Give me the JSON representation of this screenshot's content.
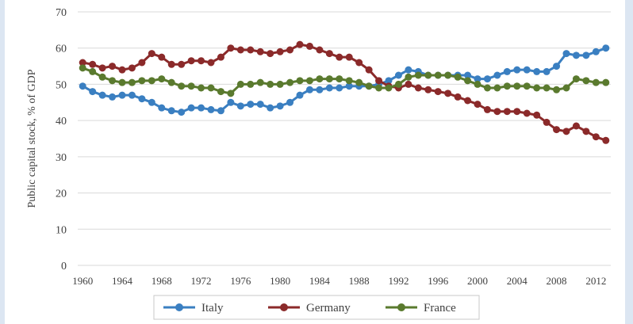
{
  "chart_data": {
    "type": "line",
    "ylabel": "Public capital stock, % of GDP",
    "ylim": [
      0,
      70
    ],
    "yticks": [
      0,
      10,
      20,
      30,
      40,
      50,
      60,
      70
    ],
    "xlim": [
      1960,
      2013
    ],
    "xticks": [
      1960,
      1964,
      1968,
      1972,
      1976,
      1980,
      1984,
      1988,
      1992,
      1996,
      2000,
      2004,
      2008,
      2012
    ],
    "grid": true,
    "legend_position": "bottom",
    "x": [
      1960,
      1961,
      1962,
      1963,
      1964,
      1965,
      1966,
      1967,
      1968,
      1969,
      1970,
      1971,
      1972,
      1973,
      1974,
      1975,
      1976,
      1977,
      1978,
      1979,
      1980,
      1981,
      1982,
      1983,
      1984,
      1985,
      1986,
      1987,
      1988,
      1989,
      1990,
      1991,
      1992,
      1993,
      1994,
      1995,
      1996,
      1997,
      1998,
      1999,
      2000,
      2001,
      2002,
      2003,
      2004,
      2005,
      2006,
      2007,
      2008,
      2009,
      2010,
      2011,
      2012,
      2013
    ],
    "series": [
      {
        "name": "Italy",
        "color": "#3a7fc1",
        "values": [
          49.5,
          48,
          47,
          46.5,
          47,
          47,
          46,
          45,
          43.5,
          42.7,
          42.3,
          43.5,
          43.5,
          43,
          42.7,
          45,
          44,
          44.5,
          44.5,
          43.5,
          44,
          45,
          47,
          48.5,
          48.5,
          49,
          49,
          49.5,
          49.5,
          49.5,
          50,
          51,
          52.5,
          54,
          53.5,
          52.5,
          52.5,
          52.5,
          52.5,
          52.5,
          51.5,
          51.5,
          52.5,
          53.5,
          54,
          54,
          53.5,
          53.5,
          55,
          58.5,
          58,
          58,
          59,
          60
        ]
      },
      {
        "name": "Germany",
        "color": "#8b2a2a",
        "values": [
          56,
          55.5,
          54.5,
          55,
          54,
          54.5,
          56,
          58.5,
          57.5,
          55.5,
          55.5,
          56.5,
          56.5,
          56,
          57.5,
          60,
          59.5,
          59.5,
          59,
          58.5,
          59,
          59.5,
          61,
          60.5,
          59.5,
          58.5,
          57.5,
          57.5,
          56,
          54,
          51,
          49.5,
          49,
          50,
          49,
          48.5,
          48,
          47.5,
          46.5,
          45.5,
          44.5,
          43,
          42.5,
          42.5,
          42.5,
          42,
          41.5,
          39.5,
          37.5,
          37,
          38.5,
          37,
          35.5,
          34.5
        ]
      },
      {
        "name": "France",
        "color": "#5a7a2e",
        "values": [
          54.5,
          53.5,
          52,
          51,
          50.5,
          50.5,
          51,
          51,
          51.5,
          50.5,
          49.5,
          49.5,
          49,
          49,
          48,
          47.5,
          50,
          50,
          50.5,
          50,
          50,
          50.5,
          51,
          51,
          51.5,
          51.5,
          51.5,
          51,
          50.5,
          49.5,
          49,
          49,
          50,
          52,
          52.5,
          52.5,
          52.5,
          52.5,
          52,
          51,
          50,
          49,
          49,
          49.5,
          49.5,
          49.5,
          49,
          49,
          48.5,
          49,
          51.5,
          51,
          50.5,
          50.5
        ]
      }
    ]
  }
}
